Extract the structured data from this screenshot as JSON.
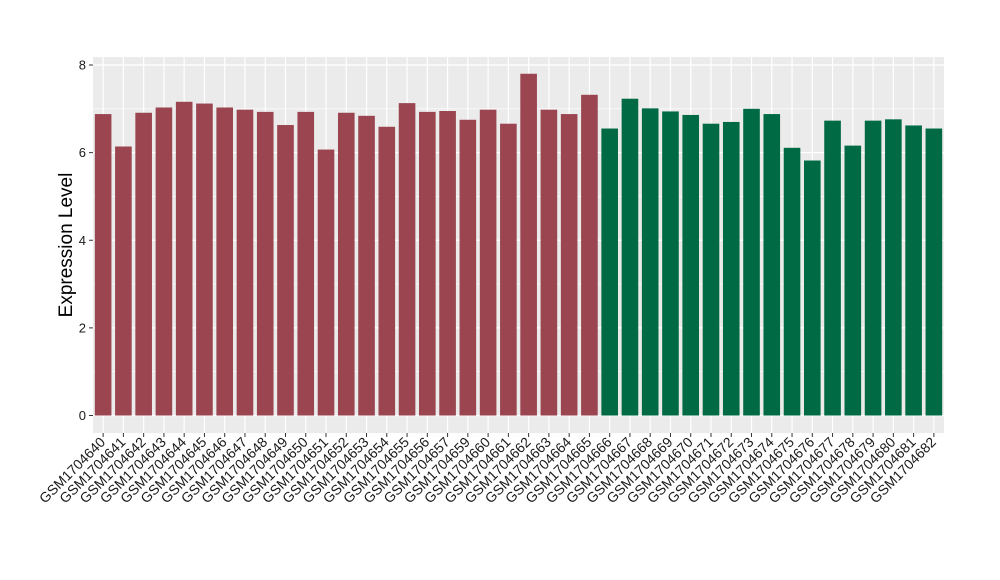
{
  "chart_data": {
    "type": "bar",
    "ylabel": "Expression Level",
    "xlabel": "",
    "ylim": [
      0,
      8.2
    ],
    "yticks": [
      "0",
      "2",
      "4",
      "6",
      "8"
    ],
    "grid": true,
    "colors": {
      "group1": "#9a4550",
      "group2": "#006a45",
      "panel": "#ebebeb",
      "grid": "#ffffff"
    },
    "categories": [
      "GSM1704640",
      "GSM1704641",
      "GSM1704642",
      "GSM1704643",
      "GSM1704644",
      "GSM1704645",
      "GSM1704646",
      "GSM1704647",
      "GSM1704648",
      "GSM1704649",
      "GSM1704650",
      "GSM1704651",
      "GSM1704652",
      "GSM1704653",
      "GSM1704654",
      "GSM1704655",
      "GSM1704656",
      "GSM1704657",
      "GSM1704659",
      "GSM1704660",
      "GSM1704661",
      "GSM1704662",
      "GSM1704663",
      "GSM1704664",
      "GSM1704665",
      "GSM1704666",
      "GSM1704667",
      "GSM1704668",
      "GSM1704669",
      "GSM1704670",
      "GSM1704671",
      "GSM1704672",
      "GSM1704673",
      "GSM1704674",
      "GSM1704675",
      "GSM1704676",
      "GSM1704677",
      "GSM1704678",
      "GSM1704679",
      "GSM1704680",
      "GSM1704681",
      "GSM1704682"
    ],
    "values": [
      6.88,
      6.14,
      6.91,
      7.03,
      7.16,
      7.12,
      7.03,
      6.98,
      6.93,
      6.63,
      6.93,
      6.07,
      6.91,
      6.84,
      6.59,
      7.13,
      6.93,
      6.95,
      6.75,
      6.98,
      6.66,
      7.8,
      6.98,
      6.88,
      7.32,
      6.55,
      7.23,
      7.01,
      6.94,
      6.86,
      6.66,
      6.7,
      7.0,
      6.88,
      6.11,
      5.82,
      6.73,
      6.16,
      6.73,
      6.76,
      6.62,
      6.55
    ],
    "groups": [
      "group1",
      "group1",
      "group1",
      "group1",
      "group1",
      "group1",
      "group1",
      "group1",
      "group1",
      "group1",
      "group1",
      "group1",
      "group1",
      "group1",
      "group1",
      "group1",
      "group1",
      "group1",
      "group1",
      "group1",
      "group1",
      "group1",
      "group1",
      "group1",
      "group1",
      "group2",
      "group2",
      "group2",
      "group2",
      "group2",
      "group2",
      "group2",
      "group2",
      "group2",
      "group2",
      "group2",
      "group2",
      "group2",
      "group2",
      "group2",
      "group2",
      "group2"
    ]
  }
}
